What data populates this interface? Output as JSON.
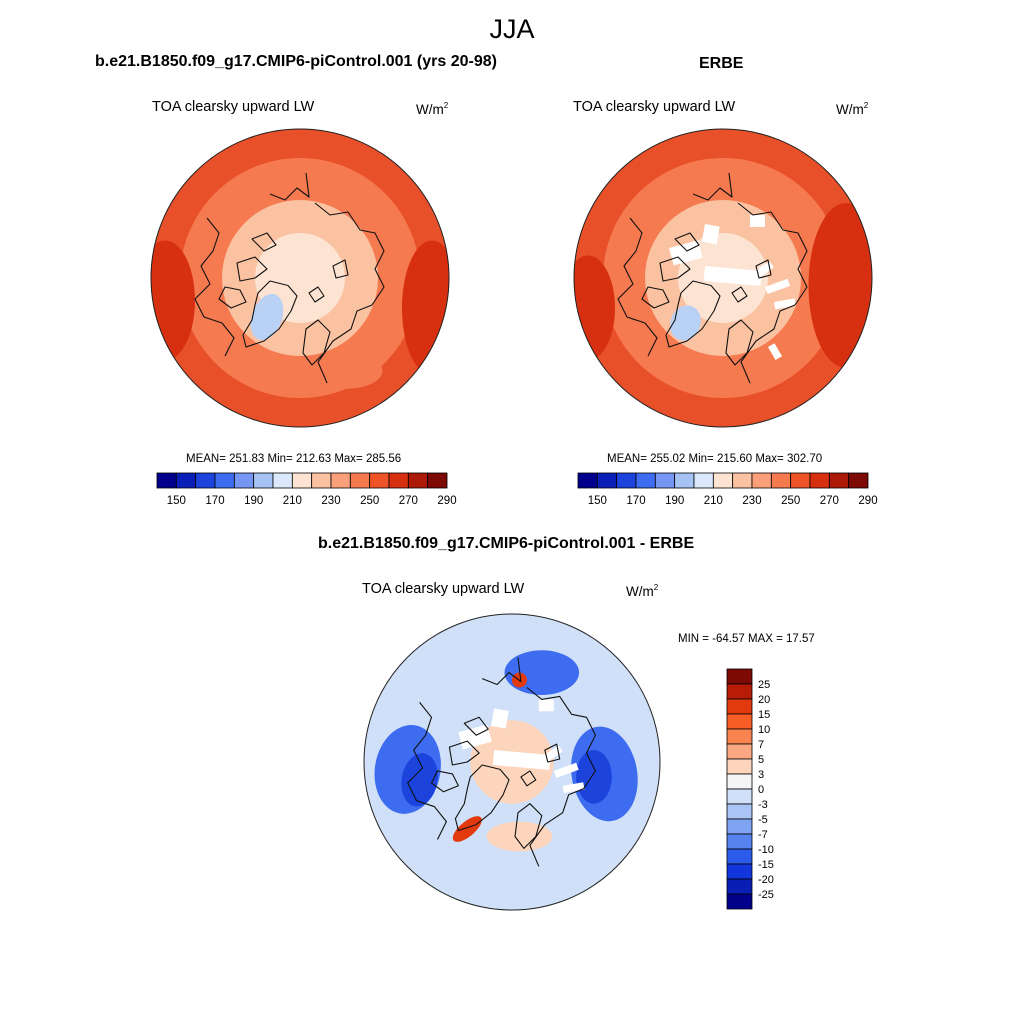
{
  "season": "JJA",
  "panels": [
    {
      "title": "b.e21.B1850.f09_g17.CMIP6-piControl.001 (yrs 20-98)",
      "variable": "TOA clearsky upward LW",
      "units_base": "W/m",
      "units_exp": "2",
      "stats": "MEAN= 251.83  Min= 212.63  Max= 285.56"
    },
    {
      "title": "ERBE",
      "variable": "TOA clearsky upward LW",
      "units_base": "W/m",
      "units_exp": "2",
      "stats": "MEAN= 255.02  Min= 215.60  Max= 302.70"
    },
    {
      "title": "b.e21.B1850.f09_g17.CMIP6-piControl.001 - ERBE",
      "variable": "TOA clearsky upward LW",
      "units_base": "W/m",
      "units_exp": "2",
      "stats": "MIN = -64.57 MAX =  17.57"
    }
  ],
  "abs_colorbar": {
    "colors": [
      "#00008b",
      "#0a1fb8",
      "#1c44dd",
      "#3d6cf0",
      "#7597f3",
      "#a7c3f6",
      "#dbe8fb",
      "#fde4d2",
      "#fbc2a2",
      "#f9a07a",
      "#f67a4f",
      "#ee5327",
      "#d73010",
      "#ad1a08",
      "#7d0a04"
    ],
    "labels": [
      "150",
      "170",
      "190",
      "210",
      "230",
      "250",
      "270",
      "290"
    ]
  },
  "diff_colorbar": {
    "colors": [
      "#7d0a04",
      "#b81c06",
      "#e23a0e",
      "#f75d25",
      "#f98450",
      "#fba882",
      "#fdd5bd",
      "#f5f5f5",
      "#cfe0f8",
      "#a9c4f5",
      "#7ea4f2",
      "#5582ef",
      "#2c5aea",
      "#1236dd",
      "#0a1eb5",
      "#00008b"
    ],
    "labels": [
      "25",
      "20",
      "15",
      "10",
      "7",
      "5",
      "3",
      "0",
      "-3",
      "-5",
      "-7",
      "-10",
      "-15",
      "-20",
      "-25"
    ]
  },
  "map_colors": {
    "abs_outer": "#e8502a",
    "abs_mid": "#f67a4f",
    "abs_inner": "#fbc2a2",
    "abs_pale": "#fde4d2",
    "abs_greenland": "#b9d1f5",
    "abs_dark": "#d73010",
    "diff_base": "#cfe0f8",
    "diff_blue": "#3d6cf0",
    "diff_deep": "#1c44dd",
    "diff_warm": "#fdd5bd",
    "diff_red": "#e23a0e"
  }
}
